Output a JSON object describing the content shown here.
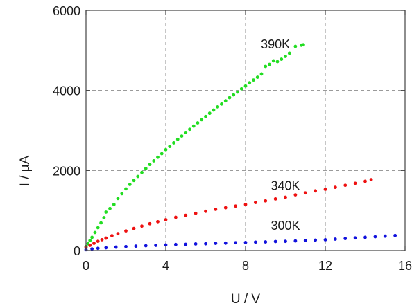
{
  "chart_data": {
    "type": "scatter",
    "xlabel": "U / V",
    "ylabel": "I / µA",
    "xlim": [
      0,
      16
    ],
    "ylim": [
      0,
      6000
    ],
    "xticks": [
      "0",
      "4",
      "8",
      "12",
      "16"
    ],
    "yticks": [
      "0",
      "2000",
      "4000",
      "6000"
    ],
    "grid": true,
    "legend": "none",
    "series": [
      {
        "name": "390K",
        "color": "#22dd22",
        "points": [
          [
            0.0,
            100
          ],
          [
            0.1,
            170
          ],
          [
            0.2,
            250
          ],
          [
            0.3,
            330
          ],
          [
            0.45,
            450
          ],
          [
            0.6,
            570
          ],
          [
            0.75,
            690
          ],
          [
            0.9,
            820
          ],
          [
            1.0,
            960
          ],
          [
            1.2,
            1050
          ],
          [
            1.4,
            1150
          ],
          [
            1.6,
            1300
          ],
          [
            1.8,
            1420
          ],
          [
            2.0,
            1540
          ],
          [
            2.2,
            1650
          ],
          [
            2.4,
            1750
          ],
          [
            2.6,
            1850
          ],
          [
            2.8,
            1950
          ],
          [
            3.0,
            2050
          ],
          [
            3.2,
            2150
          ],
          [
            3.4,
            2240
          ],
          [
            3.6,
            2330
          ],
          [
            3.8,
            2420
          ],
          [
            4.0,
            2520
          ],
          [
            4.2,
            2600
          ],
          [
            4.4,
            2690
          ],
          [
            4.6,
            2780
          ],
          [
            4.8,
            2860
          ],
          [
            5.0,
            2950
          ],
          [
            5.2,
            3030
          ],
          [
            5.4,
            3110
          ],
          [
            5.6,
            3190
          ],
          [
            5.8,
            3270
          ],
          [
            6.0,
            3350
          ],
          [
            6.2,
            3430
          ],
          [
            6.4,
            3510
          ],
          [
            6.6,
            3590
          ],
          [
            6.8,
            3660
          ],
          [
            7.0,
            3740
          ],
          [
            7.2,
            3820
          ],
          [
            7.4,
            3890
          ],
          [
            7.6,
            3960
          ],
          [
            7.8,
            4040
          ],
          [
            8.0,
            4110
          ],
          [
            8.2,
            4190
          ],
          [
            8.4,
            4260
          ],
          [
            8.6,
            4330
          ],
          [
            8.8,
            4410
          ],
          [
            9.0,
            4600
          ],
          [
            9.2,
            4650
          ],
          [
            9.4,
            4740
          ],
          [
            9.6,
            4720
          ],
          [
            9.8,
            4780
          ],
          [
            10.0,
            4850
          ],
          [
            10.2,
            4930
          ],
          [
            10.5,
            5100
          ],
          [
            10.8,
            5130
          ],
          [
            10.9,
            5140
          ]
        ]
      },
      {
        "name": "340K",
        "color": "#ee1111",
        "points": [
          [
            0.0,
            80
          ],
          [
            0.2,
            130
          ],
          [
            0.4,
            180
          ],
          [
            0.6,
            230
          ],
          [
            0.8,
            270
          ],
          [
            1.0,
            310
          ],
          [
            1.3,
            370
          ],
          [
            1.6,
            420
          ],
          [
            2.0,
            490
          ],
          [
            2.4,
            550
          ],
          [
            2.8,
            610
          ],
          [
            3.2,
            670
          ],
          [
            3.6,
            720
          ],
          [
            4.0,
            770
          ],
          [
            4.5,
            830
          ],
          [
            5.0,
            880
          ],
          [
            5.5,
            930
          ],
          [
            6.0,
            980
          ],
          [
            6.5,
            1030
          ],
          [
            7.0,
            1070
          ],
          [
            7.5,
            1110
          ],
          [
            8.0,
            1150
          ],
          [
            8.5,
            1200
          ],
          [
            9.0,
            1240
          ],
          [
            9.5,
            1290
          ],
          [
            10.0,
            1330
          ],
          [
            10.5,
            1390
          ],
          [
            11.0,
            1440
          ],
          [
            11.5,
            1490
          ],
          [
            12.0,
            1530
          ],
          [
            12.5,
            1580
          ],
          [
            13.0,
            1630
          ],
          [
            13.5,
            1680
          ],
          [
            14.0,
            1730
          ],
          [
            14.3,
            1770
          ]
        ]
      },
      {
        "name": "300K",
        "color": "#1111dd",
        "points": [
          [
            0.0,
            20
          ],
          [
            0.3,
            40
          ],
          [
            0.6,
            55
          ],
          [
            1.0,
            70
          ],
          [
            1.5,
            85
          ],
          [
            2.0,
            100
          ],
          [
            2.5,
            110
          ],
          [
            3.0,
            120
          ],
          [
            3.5,
            130
          ],
          [
            4.0,
            140
          ],
          [
            4.5,
            150
          ],
          [
            5.0,
            155
          ],
          [
            5.5,
            165
          ],
          [
            6.0,
            170
          ],
          [
            6.5,
            180
          ],
          [
            7.0,
            185
          ],
          [
            7.5,
            195
          ],
          [
            8.0,
            200
          ],
          [
            8.5,
            210
          ],
          [
            9.0,
            215
          ],
          [
            9.5,
            225
          ],
          [
            10.0,
            230
          ],
          [
            10.5,
            240
          ],
          [
            11.0,
            250
          ],
          [
            11.5,
            260
          ],
          [
            12.0,
            270
          ],
          [
            12.5,
            285
          ],
          [
            13.0,
            300
          ],
          [
            13.5,
            315
          ],
          [
            14.0,
            330
          ],
          [
            14.5,
            345
          ],
          [
            15.0,
            360
          ],
          [
            15.5,
            375
          ]
        ]
      }
    ],
    "annotations": [
      {
        "text": "390K",
        "series": "390K",
        "x": 9.5,
        "y": 5150
      },
      {
        "text": "340K",
        "series": "340K",
        "x": 10.0,
        "y": 1620
      },
      {
        "text": "300K",
        "series": "300K",
        "x": 10.0,
        "y": 620
      }
    ]
  }
}
